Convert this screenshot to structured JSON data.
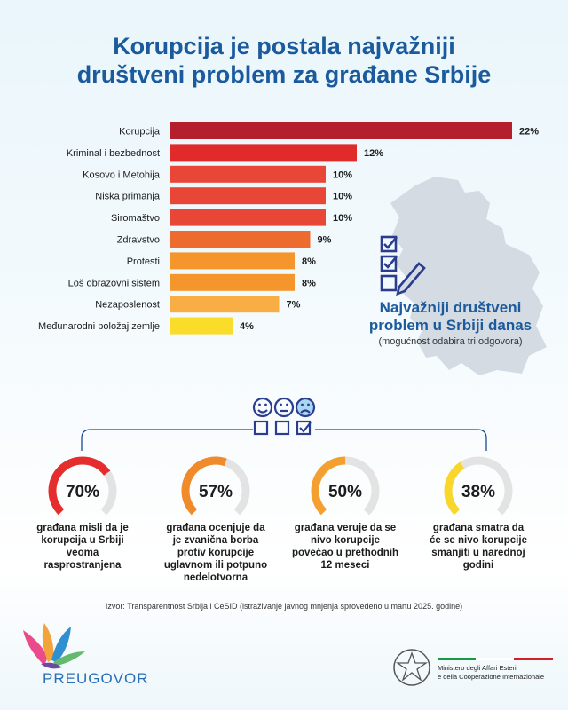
{
  "title": {
    "line1": "Korupcija je postala najvažniji",
    "line2": "društveni problem za građane Srbije"
  },
  "chart_data": {
    "type": "bar",
    "orientation": "horizontal",
    "categories": [
      "Korupcija",
      "Kriminal i bezbednost",
      "Kosovo i Metohija",
      "Niska primanja",
      "Siromaštvo",
      "Zdravstvo",
      "Protesti",
      "Loš obrazovni sistem",
      "Nezaposlenost",
      "Međunarodni položaj zemlje"
    ],
    "values": [
      22,
      12,
      10,
      10,
      10,
      9,
      8,
      8,
      7,
      4
    ],
    "value_labels": [
      "22%",
      "12%",
      "10%",
      "10%",
      "10%",
      "9%",
      "8%",
      "8%",
      "7%",
      "4%"
    ],
    "colors": [
      "#b51e2c",
      "#e12a2a",
      "#e84637",
      "#e84637",
      "#e84637",
      "#ee6b2f",
      "#f4962c",
      "#f4962c",
      "#f8ae45",
      "#f9dd2a"
    ],
    "title": "",
    "xlabel": "",
    "ylabel": ""
  },
  "chart_caption": {
    "heading_line1": "Najvažniji društveni",
    "heading_line2": "problem u Srbiji danas",
    "subtitle": "(mogućnost odabira tri odgovora)"
  },
  "gauges": [
    {
      "value": 70,
      "label": "70%",
      "color": "#e52d2d",
      "text": [
        "građana misli da je",
        "korupcija u Srbiji",
        "veoma",
        "rasprostranjena"
      ]
    },
    {
      "value": 57,
      "label": "57%",
      "color": "#f08a2a",
      "text": [
        "građana ocenjuje da",
        "je zvanična borba",
        "protiv korupcije",
        "uglavnom ili potpuno",
        "nedelotvorna"
      ]
    },
    {
      "value": 50,
      "label": "50%",
      "color": "#f4a030",
      "text": [
        "građana veruje da se",
        "nivo korupcije",
        "povećao u prethodnih",
        "12 meseci"
      ]
    },
    {
      "value": 38,
      "label": "38%",
      "color": "#f8d72a",
      "text": [
        "građana smatra da",
        "će se nivo korupcije",
        "smanjiti u narednoj",
        "godini"
      ]
    }
  ],
  "source": "Izvor: Transparentnost Srbija i CeSID (istraživanje javnog mnjenja sprovedeno u martu 2025. godine)",
  "logos": {
    "left_brand": "PREUGOVOR",
    "ministry_line1": "Ministero degli Affari Esteri",
    "ministry_line2": "e della Cooperazione Internazionale"
  },
  "colors": {
    "accent": "#1b5a9c",
    "map": "#d5dbe2",
    "icon": "#2b3d8f"
  }
}
